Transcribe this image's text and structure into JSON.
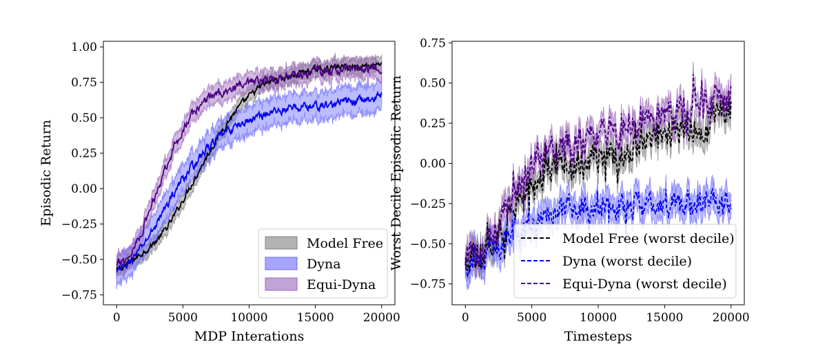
{
  "chart_data": [
    {
      "type": "line",
      "xlabel": "MDP Interations",
      "ylabel": "Episodic Return",
      "xlim": [
        -1000,
        21000
      ],
      "ylim": [
        -0.82,
        1.04
      ],
      "xticks": [
        0,
        5000,
        10000,
        15000,
        20000
      ],
      "xtick_labels": [
        "0",
        "5000",
        "10000",
        "15000",
        "20000"
      ],
      "yticks": [
        -0.75,
        -0.5,
        -0.25,
        0.0,
        0.25,
        0.5,
        0.75,
        1.0
      ],
      "ytick_labels": [
        "−0.75",
        "−0.50",
        "−0.25",
        "0.00",
        "0.25",
        "0.50",
        "0.75",
        "1.00"
      ],
      "grid": false,
      "legend": {
        "placement": "lower-right",
        "style": "patch"
      },
      "series": [
        {
          "name": "Model Free",
          "color": "#000000",
          "fill": "#808080",
          "dashed": false,
          "noise": 0.018,
          "band": 0.045,
          "x": [
            0,
            1000,
            2000,
            3000,
            4000,
            5000,
            6000,
            7000,
            8000,
            9000,
            10000,
            11000,
            12000,
            13000,
            14000,
            15000,
            16000,
            17000,
            18000,
            19000,
            20000
          ],
          "y": [
            -0.58,
            -0.52,
            -0.45,
            -0.37,
            -0.25,
            -0.08,
            0.09,
            0.26,
            0.42,
            0.55,
            0.65,
            0.73,
            0.77,
            0.79,
            0.82,
            0.84,
            0.85,
            0.86,
            0.86,
            0.87,
            0.89
          ]
        },
        {
          "name": "Dyna",
          "color": "#0000ee",
          "fill": "#6a6aff",
          "dashed": false,
          "noise": 0.025,
          "band": 0.09,
          "x": [
            0,
            1000,
            2000,
            3000,
            4000,
            5000,
            6000,
            7000,
            8000,
            9000,
            10000,
            11000,
            12000,
            13000,
            14000,
            15000,
            16000,
            17000,
            18000,
            19000,
            20000
          ],
          "y": [
            -0.6,
            -0.52,
            -0.4,
            -0.25,
            -0.08,
            0.07,
            0.19,
            0.3,
            0.38,
            0.44,
            0.48,
            0.52,
            0.55,
            0.56,
            0.58,
            0.58,
            0.59,
            0.61,
            0.62,
            0.63,
            0.65
          ]
        },
        {
          "name": "Equi-Dyna",
          "color": "#4b0082",
          "fill": "#9a66bb",
          "dashed": false,
          "noise": 0.028,
          "band": 0.06,
          "x": [
            0,
            1000,
            2000,
            3000,
            4000,
            5000,
            6000,
            7000,
            8000,
            9000,
            10000,
            11000,
            12000,
            13000,
            14000,
            15000,
            16000,
            17000,
            18000,
            19000,
            20000
          ],
          "y": [
            -0.55,
            -0.47,
            -0.28,
            -0.02,
            0.23,
            0.42,
            0.56,
            0.65,
            0.69,
            0.71,
            0.73,
            0.76,
            0.78,
            0.8,
            0.81,
            0.82,
            0.83,
            0.84,
            0.85,
            0.85,
            0.86
          ]
        }
      ]
    },
    {
      "type": "line",
      "xlabel": "Timesteps",
      "ylabel": "Worst Decile Episodic Return",
      "xlim": [
        -1000,
        21000
      ],
      "ylim": [
        -0.88,
        0.76
      ],
      "xticks": [
        0,
        5000,
        10000,
        15000,
        20000
      ],
      "xtick_labels": [
        "0",
        "5000",
        "10000",
        "15000",
        "20000"
      ],
      "yticks": [
        -0.75,
        -0.5,
        -0.25,
        0.0,
        0.25,
        0.5,
        0.75
      ],
      "ytick_labels": [
        "−0.75",
        "−0.50",
        "−0.25",
        "0.00",
        "0.25",
        "0.50",
        "0.75"
      ],
      "grid": false,
      "legend": {
        "placement": "lower-right",
        "style": "dashed-line"
      },
      "series": [
        {
          "name": "Model Free (worst decile)",
          "color": "#000000",
          "fill": "#808080",
          "dashed": true,
          "noise": 0.07,
          "band": 0.06,
          "x": [
            0,
            1000,
            2000,
            3000,
            4000,
            5000,
            6000,
            7000,
            8000,
            9000,
            10000,
            11000,
            12000,
            13000,
            14000,
            15000,
            16000,
            17000,
            18000,
            19000,
            20000
          ],
          "y": [
            -0.66,
            -0.58,
            -0.5,
            -0.38,
            -0.25,
            -0.12,
            -0.04,
            -0.01,
            -0.02,
            0.01,
            0.03,
            0.06,
            0.08,
            0.13,
            0.16,
            0.18,
            0.2,
            0.22,
            0.24,
            0.3,
            0.37
          ]
        },
        {
          "name": "Dyna (worst decile)",
          "color": "#0000ee",
          "fill": "#6a6aff",
          "dashed": true,
          "noise": 0.06,
          "band": 0.07,
          "x": [
            0,
            1000,
            2000,
            3000,
            4000,
            5000,
            6000,
            7000,
            8000,
            9000,
            10000,
            11000,
            12000,
            13000,
            14000,
            15000,
            16000,
            17000,
            18000,
            19000,
            20000
          ],
          "y": [
            -0.63,
            -0.6,
            -0.55,
            -0.5,
            -0.45,
            -0.38,
            -0.33,
            -0.3,
            -0.29,
            -0.28,
            -0.27,
            -0.27,
            -0.26,
            -0.26,
            -0.25,
            -0.25,
            -0.26,
            -0.25,
            -0.24,
            -0.25,
            -0.24
          ]
        },
        {
          "name": "Equi-Dyna (worst decile)",
          "color": "#4b0082",
          "fill": "#9a66bb",
          "dashed": true,
          "noise": 0.08,
          "band": 0.06,
          "x": [
            0,
            1000,
            2000,
            3000,
            4000,
            5000,
            6000,
            7000,
            8000,
            9000,
            10000,
            11000,
            12000,
            13000,
            14000,
            15000,
            16000,
            17000,
            18000,
            19000,
            20000
          ],
          "y": [
            -0.62,
            -0.55,
            -0.43,
            -0.3,
            -0.15,
            -0.02,
            0.06,
            0.1,
            0.11,
            0.13,
            0.15,
            0.19,
            0.23,
            0.26,
            0.29,
            0.32,
            0.35,
            0.37,
            0.38,
            0.38,
            0.39
          ]
        }
      ]
    }
  ]
}
